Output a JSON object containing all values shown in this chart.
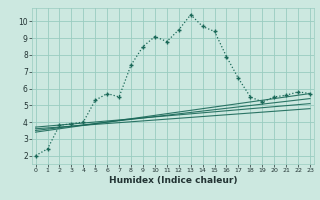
{
  "title": "",
  "xlabel": "Humidex (Indice chaleur)",
  "background_color": "#cce8e0",
  "grid_color": "#99ccc0",
  "line_color": "#1a6858",
  "main_x": [
    0,
    1,
    2,
    3,
    4,
    5,
    6,
    7,
    8,
    9,
    10,
    11,
    12,
    13,
    14,
    15,
    16,
    17,
    18,
    19,
    20,
    21,
    22,
    23
  ],
  "main_y": [
    2.0,
    2.4,
    3.8,
    3.9,
    4.0,
    5.3,
    5.7,
    5.5,
    7.4,
    8.5,
    9.1,
    8.8,
    9.5,
    10.4,
    9.7,
    9.4,
    7.9,
    6.6,
    5.5,
    5.2,
    5.5,
    5.6,
    5.8,
    5.7
  ],
  "reg_lines": [
    {
      "x": [
        0,
        23
      ],
      "y": [
        3.6,
        4.8
      ]
    },
    {
      "x": [
        0,
        23
      ],
      "y": [
        3.7,
        5.1
      ]
    },
    {
      "x": [
        0,
        23
      ],
      "y": [
        3.5,
        5.4
      ]
    },
    {
      "x": [
        0,
        23
      ],
      "y": [
        3.4,
        5.7
      ]
    }
  ],
  "ylim": [
    1.5,
    10.8
  ],
  "xlim": [
    -0.3,
    23.3
  ],
  "yticks": [
    2,
    3,
    4,
    5,
    6,
    7,
    8,
    9,
    10
  ],
  "xticks": [
    0,
    1,
    2,
    3,
    4,
    5,
    6,
    7,
    8,
    9,
    10,
    11,
    12,
    13,
    14,
    15,
    16,
    17,
    18,
    19,
    20,
    21,
    22,
    23
  ]
}
